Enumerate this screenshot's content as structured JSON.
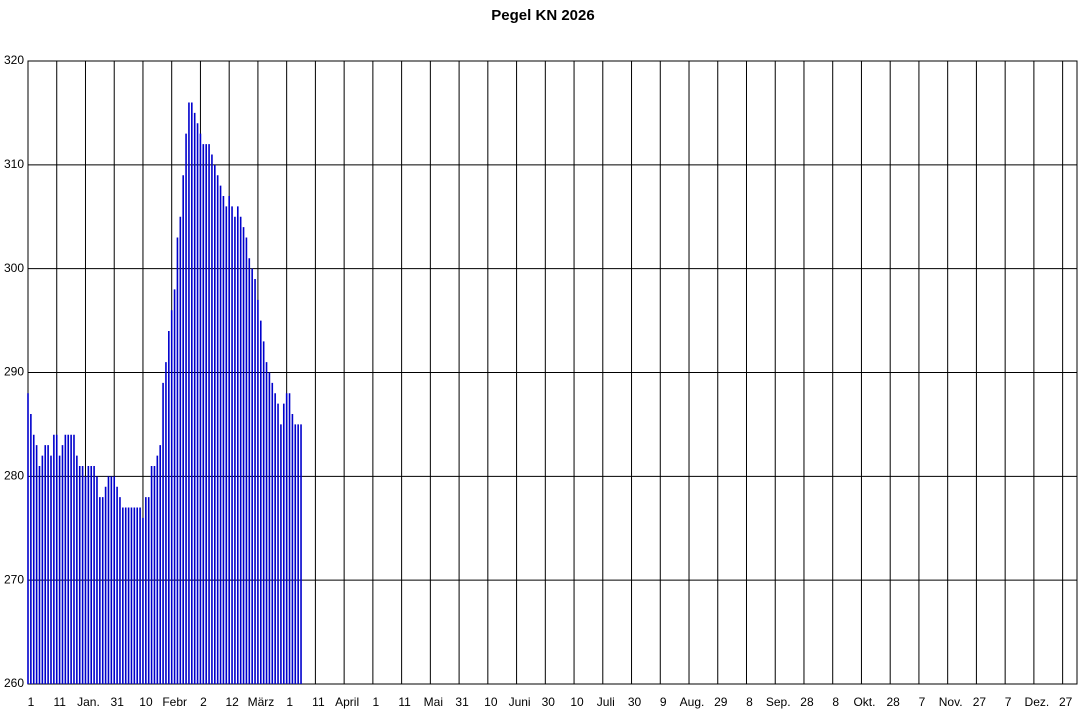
{
  "chart_data": {
    "type": "bar",
    "title": "Pegel KN 2026",
    "color": "#0000cc",
    "grid": true,
    "x": [
      1,
      2,
      3,
      4,
      5,
      6,
      7,
      8,
      9,
      10,
      11,
      12,
      13,
      14,
      15,
      16,
      17,
      18,
      19,
      20,
      21,
      22,
      23,
      24,
      25,
      26,
      27,
      28,
      29,
      30,
      31,
      32,
      33,
      34,
      35,
      36,
      37,
      38,
      39,
      40,
      41,
      42,
      43,
      44,
      45,
      46,
      47,
      48,
      49,
      50,
      51,
      52,
      53,
      54,
      55,
      56,
      57,
      58,
      59,
      60,
      61,
      62,
      63,
      64,
      65,
      66,
      67,
      68,
      69,
      70,
      71,
      72,
      73,
      74,
      75,
      76,
      77,
      78,
      79,
      80,
      81,
      82,
      83,
      84,
      85,
      86,
      87,
      88,
      89,
      90,
      91,
      92,
      93,
      94,
      95,
      96
    ],
    "values": [
      288,
      286,
      284,
      283,
      281,
      282,
      283,
      283,
      282,
      284,
      284,
      282,
      283,
      284,
      284,
      284,
      284,
      282,
      281,
      281,
      280,
      281,
      281,
      281,
      280,
      278,
      278,
      279,
      280,
      280,
      280,
      279,
      278,
      277,
      277,
      277,
      277,
      277,
      277,
      277,
      276,
      278,
      278,
      281,
      281,
      282,
      283,
      289,
      291,
      294,
      296,
      298,
      303,
      305,
      309,
      313,
      316,
      316,
      315,
      314,
      313,
      312,
      312,
      312,
      311,
      310,
      309,
      308,
      307,
      306,
      307,
      306,
      305,
      306,
      305,
      304,
      303,
      301,
      300,
      299,
      297,
      295,
      293,
      291,
      290,
      289,
      288,
      287,
      285,
      287,
      288,
      288,
      286,
      285,
      285,
      285
    ],
    "xlim": [
      1,
      366
    ],
    "xticks": [
      1,
      11,
      {
        "value": 21,
        "label": "Jan."
      },
      31,
      {
        "value": 41,
        "label": "10"
      },
      {
        "value": 51,
        "label": "Febr"
      },
      {
        "value": 61,
        "label": "2"
      },
      {
        "value": 71,
        "label": "12"
      },
      {
        "value": 81,
        "label": "März"
      },
      {
        "value": 91,
        "label": "1"
      },
      {
        "value": 101,
        "label": "11"
      },
      {
        "value": 111,
        "label": "April"
      },
      {
        "value": 121,
        "label": "1"
      },
      {
        "value": 131,
        "label": "11"
      },
      {
        "value": 141,
        "label": "Mai"
      },
      {
        "value": 151,
        "label": "31"
      },
      {
        "value": 161,
        "label": "10"
      },
      {
        "value": 171,
        "label": "Juni"
      },
      {
        "value": 181,
        "label": "30"
      },
      {
        "value": 191,
        "label": "10"
      },
      {
        "value": 201,
        "label": "Juli"
      },
      {
        "value": 211,
        "label": "30"
      },
      {
        "value": 221,
        "label": "9"
      },
      {
        "value": 231,
        "label": "Aug."
      },
      {
        "value": 241,
        "label": "29"
      },
      {
        "value": 251,
        "label": "8"
      },
      {
        "value": 261,
        "label": "Sep."
      },
      {
        "value": 271,
        "label": "28"
      },
      {
        "value": 281,
        "label": "8"
      },
      {
        "value": 291,
        "label": "Okt."
      },
      {
        "value": 301,
        "label": "28"
      },
      {
        "value": 311,
        "label": "7"
      },
      {
        "value": 321,
        "label": "Nov."
      },
      {
        "value": 331,
        "label": "27"
      },
      {
        "value": 341,
        "label": "7"
      },
      {
        "value": 351,
        "label": "Dez."
      },
      {
        "value": 361,
        "label": "27"
      }
    ],
    "ylim": [
      260,
      320
    ],
    "yticks": [
      260,
      270,
      280,
      290,
      300,
      310,
      320
    ]
  }
}
